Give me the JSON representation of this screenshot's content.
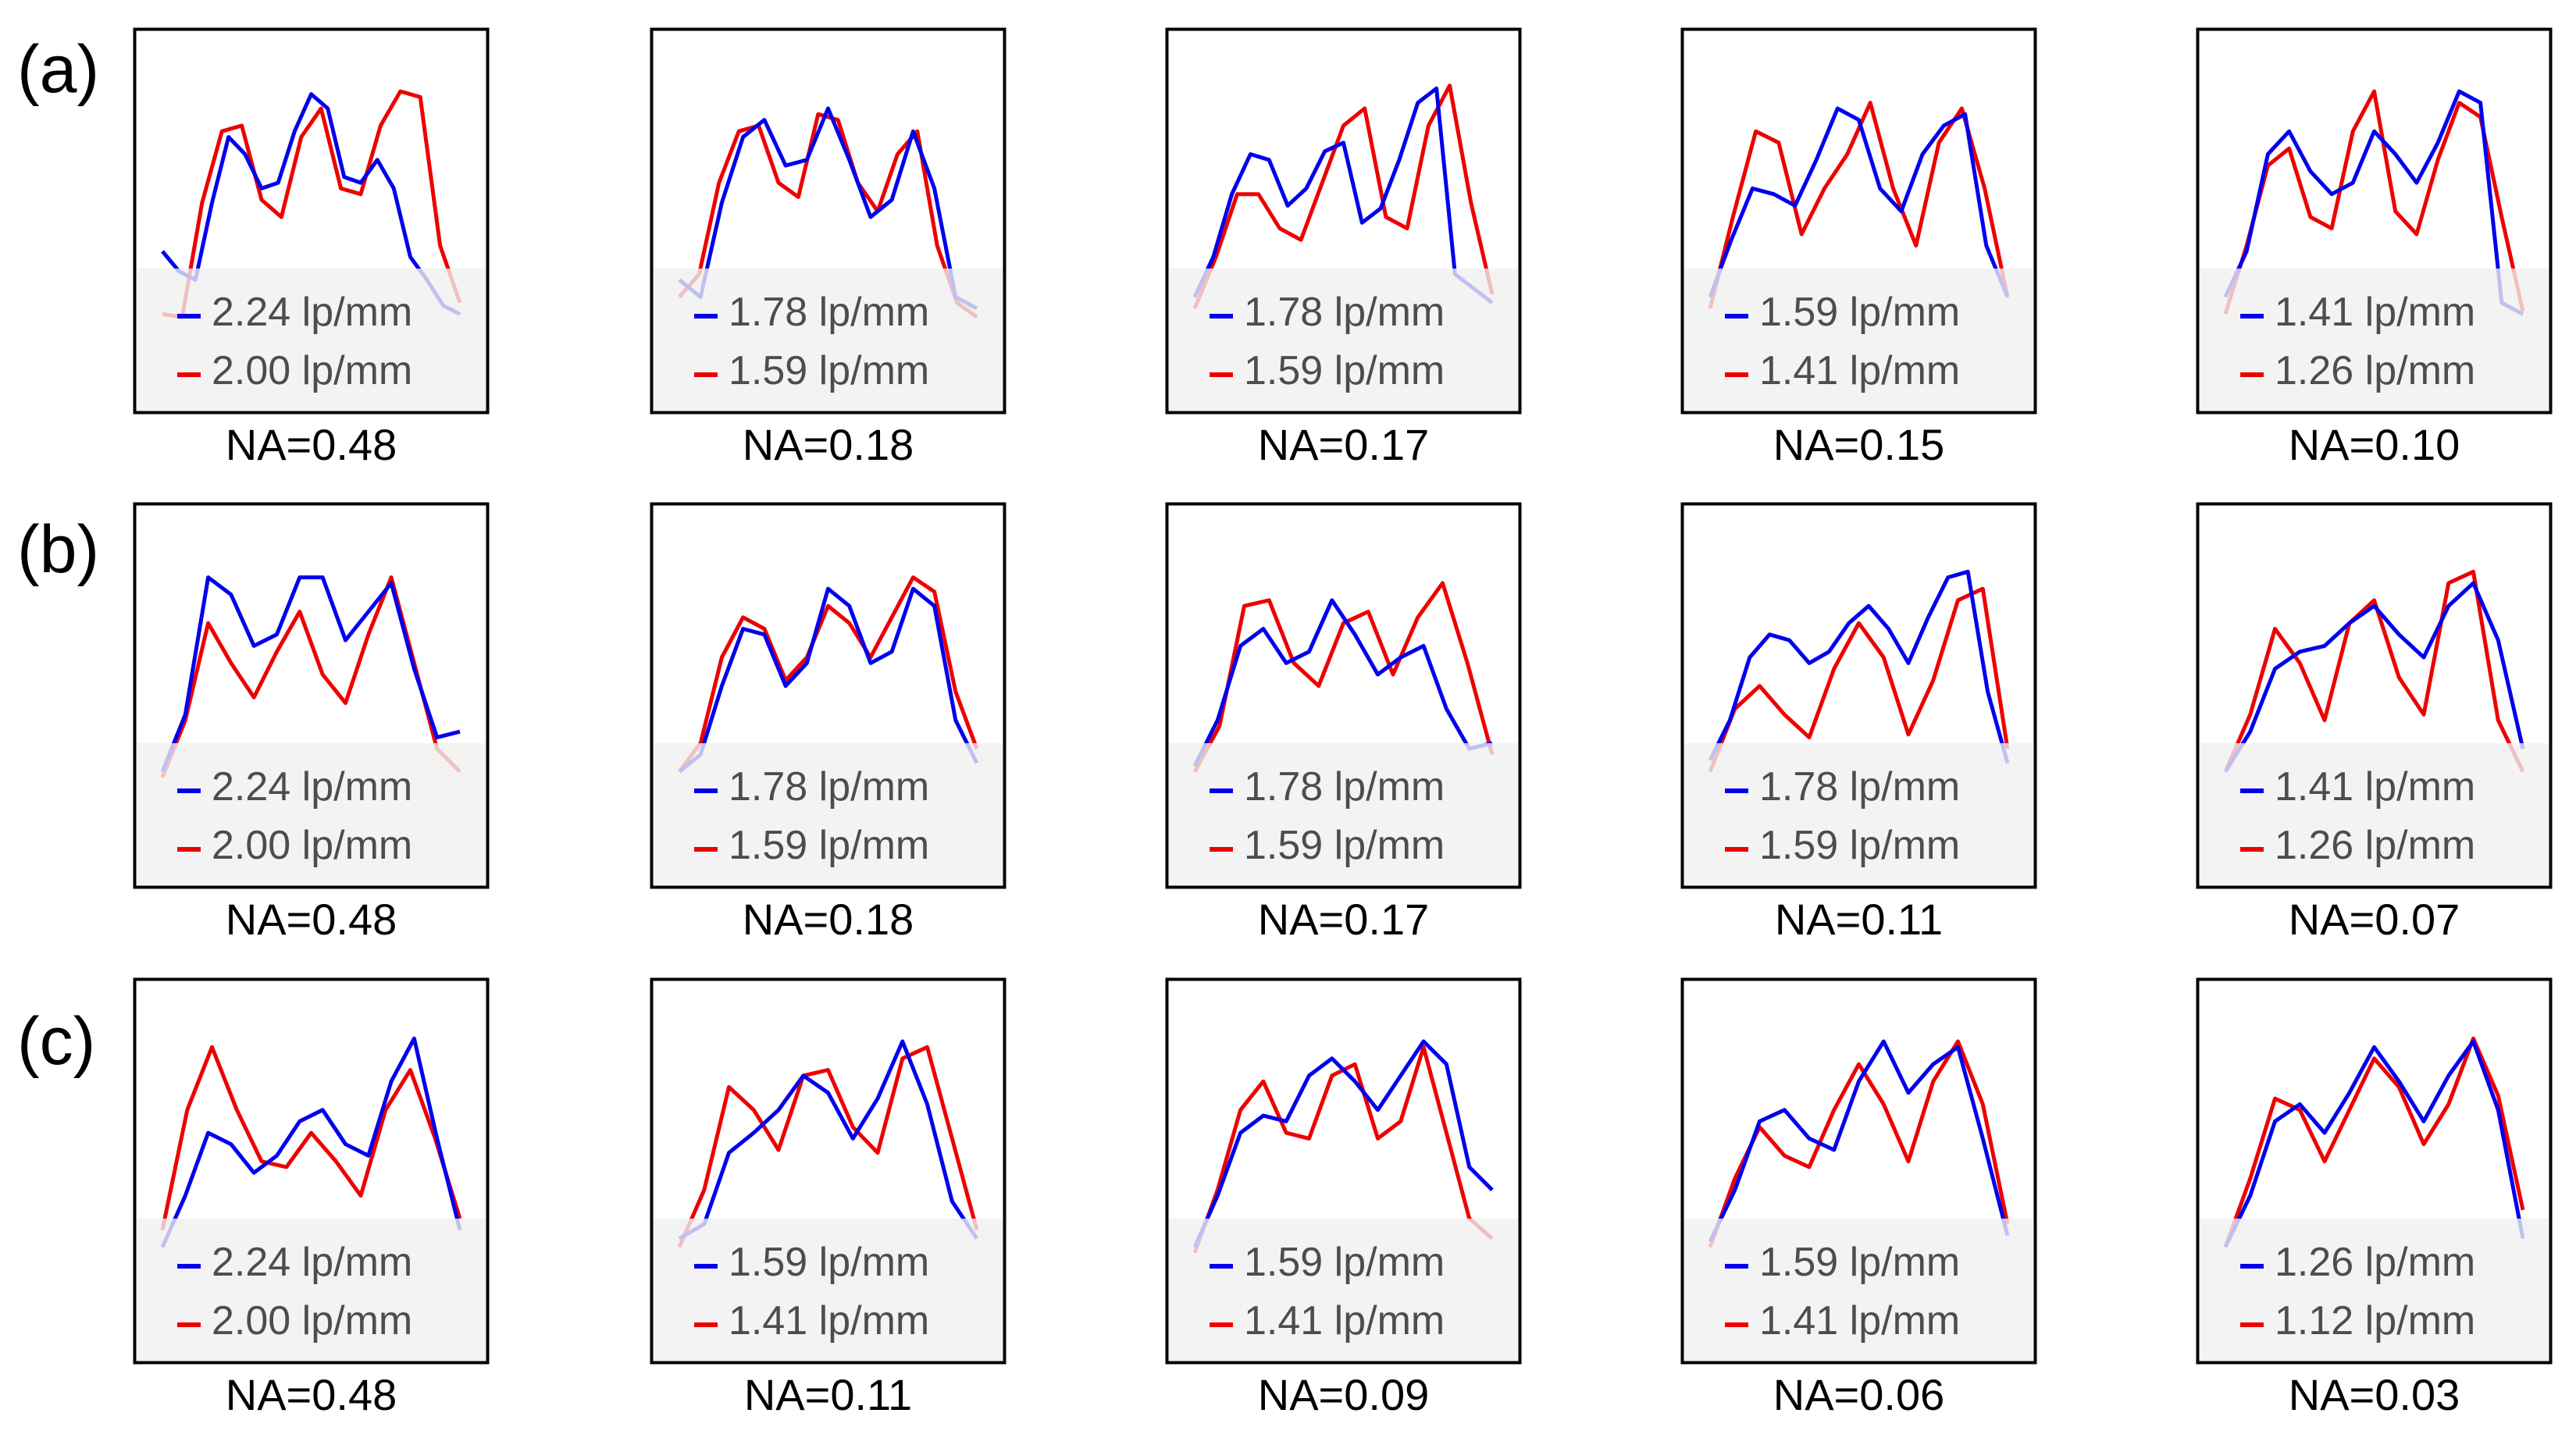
{
  "figure": {
    "row_labels": [
      "(a)",
      "(b)",
      "(c)"
    ]
  },
  "colors": {
    "series_1": "#0000ee",
    "series_2": "#ee0000",
    "frame": "#000000",
    "legend_background": "#f0f0f0"
  },
  "chart_data": [
    {
      "type": "line",
      "row": "(a)",
      "na_label": "NA=0.48",
      "series": [
        {
          "name": "2.24 lp/mm",
          "color": "#0000ee",
          "values": [
            0.38,
            0.31,
            0.28,
            0.55,
            0.78,
            0.72,
            0.6,
            0.62,
            0.8,
            0.93,
            0.88,
            0.64,
            0.62,
            0.7,
            0.6,
            0.36,
            0.28,
            0.19,
            0.16
          ]
        },
        {
          "name": "2.00 lp/mm",
          "color": "#ee0000",
          "values": [
            0.16,
            0.15,
            0.55,
            0.8,
            0.82,
            0.56,
            0.5,
            0.78,
            0.88,
            0.6,
            0.58,
            0.82,
            0.94,
            0.92,
            0.4,
            0.2
          ]
        }
      ]
    },
    {
      "type": "line",
      "row": "(a)",
      "na_label": "NA=0.18",
      "series": [
        {
          "name": "1.78 lp/mm",
          "color": "#0000ee",
          "values": [
            0.28,
            0.22,
            0.55,
            0.78,
            0.84,
            0.68,
            0.7,
            0.88,
            0.7,
            0.5,
            0.56,
            0.8,
            0.6,
            0.22,
            0.18
          ]
        },
        {
          "name": "1.59 lp/mm",
          "color": "#ee0000",
          "values": [
            0.22,
            0.3,
            0.62,
            0.8,
            0.82,
            0.62,
            0.57,
            0.86,
            0.84,
            0.62,
            0.52,
            0.72,
            0.8,
            0.4,
            0.2,
            0.15
          ]
        }
      ]
    },
    {
      "type": "line",
      "row": "(a)",
      "na_label": "NA=0.17",
      "series": [
        {
          "name": "1.78 lp/mm",
          "color": "#0000ee",
          "values": [
            0.22,
            0.36,
            0.58,
            0.72,
            0.7,
            0.54,
            0.6,
            0.73,
            0.76,
            0.48,
            0.53,
            0.7,
            0.9,
            0.95,
            0.3,
            0.25,
            0.2
          ]
        },
        {
          "name": "1.59 lp/mm",
          "color": "#ee0000",
          "values": [
            0.18,
            0.36,
            0.58,
            0.58,
            0.46,
            0.42,
            0.62,
            0.82,
            0.88,
            0.5,
            0.46,
            0.82,
            0.96,
            0.55,
            0.23
          ]
        }
      ]
    },
    {
      "type": "line",
      "row": "(a)",
      "na_label": "NA=0.15",
      "series": [
        {
          "name": "1.59 lp/mm",
          "color": "#0000ee",
          "values": [
            0.22,
            0.42,
            0.6,
            0.58,
            0.54,
            0.7,
            0.88,
            0.84,
            0.6,
            0.52,
            0.72,
            0.82,
            0.86,
            0.4,
            0.22
          ]
        },
        {
          "name": "1.41 lp/mm",
          "color": "#ee0000",
          "values": [
            0.18,
            0.5,
            0.8,
            0.76,
            0.44,
            0.6,
            0.72,
            0.9,
            0.6,
            0.4,
            0.76,
            0.88,
            0.6,
            0.22
          ]
        }
      ]
    },
    {
      "type": "line",
      "row": "(a)",
      "na_label": "NA=0.10",
      "series": [
        {
          "name": "1.41 lp/mm",
          "color": "#0000ee",
          "values": [
            0.22,
            0.38,
            0.72,
            0.8,
            0.66,
            0.58,
            0.62,
            0.8,
            0.72,
            0.62,
            0.76,
            0.94,
            0.9,
            0.2,
            0.16
          ]
        },
        {
          "name": "1.26 lp/mm",
          "color": "#ee0000",
          "values": [
            0.16,
            0.4,
            0.68,
            0.74,
            0.5,
            0.46,
            0.8,
            0.94,
            0.52,
            0.44,
            0.7,
            0.9,
            0.85,
            0.5,
            0.17
          ]
        }
      ]
    },
    {
      "type": "line",
      "row": "(b)",
      "na_label": "NA=0.48",
      "series": [
        {
          "name": "2.24 lp/mm",
          "color": "#0000ee",
          "values": [
            0.22,
            0.42,
            0.9,
            0.84,
            0.66,
            0.7,
            0.9,
            0.9,
            0.68,
            0.78,
            0.88,
            0.58,
            0.34,
            0.36
          ]
        },
        {
          "name": "2.00 lp/mm",
          "color": "#ee0000",
          "values": [
            0.2,
            0.4,
            0.74,
            0.6,
            0.48,
            0.64,
            0.78,
            0.56,
            0.46,
            0.7,
            0.9,
            0.6,
            0.3,
            0.22
          ]
        }
      ]
    },
    {
      "type": "line",
      "row": "(b)",
      "na_label": "NA=0.18",
      "series": [
        {
          "name": "1.78 lp/mm",
          "color": "#0000ee",
          "values": [
            0.22,
            0.28,
            0.52,
            0.72,
            0.7,
            0.52,
            0.6,
            0.86,
            0.8,
            0.6,
            0.64,
            0.86,
            0.8,
            0.4,
            0.25
          ]
        },
        {
          "name": "1.59 lp/mm",
          "color": "#ee0000",
          "values": [
            0.22,
            0.32,
            0.62,
            0.76,
            0.72,
            0.54,
            0.62,
            0.8,
            0.74,
            0.62,
            0.76,
            0.9,
            0.85,
            0.5,
            0.3
          ]
        }
      ]
    },
    {
      "type": "line",
      "row": "(b)",
      "na_label": "NA=0.17",
      "series": [
        {
          "name": "1.78 lp/mm",
          "color": "#0000ee",
          "values": [
            0.24,
            0.4,
            0.66,
            0.72,
            0.6,
            0.64,
            0.82,
            0.7,
            0.56,
            0.62,
            0.66,
            0.44,
            0.3,
            0.32
          ]
        },
        {
          "name": "1.59 lp/mm",
          "color": "#ee0000",
          "values": [
            0.22,
            0.38,
            0.8,
            0.82,
            0.6,
            0.52,
            0.74,
            0.78,
            0.56,
            0.76,
            0.88,
            0.6,
            0.28
          ]
        }
      ]
    },
    {
      "type": "line",
      "row": "(b)",
      "na_label": "NA=0.11",
      "series": [
        {
          "name": "1.78 lp/mm",
          "color": "#0000ee",
          "values": [
            0.26,
            0.4,
            0.62,
            0.7,
            0.68,
            0.6,
            0.64,
            0.74,
            0.8,
            0.72,
            0.6,
            0.76,
            0.9,
            0.92,
            0.5,
            0.25
          ]
        },
        {
          "name": "1.59 lp/mm",
          "color": "#ee0000",
          "values": [
            0.22,
            0.44,
            0.52,
            0.42,
            0.34,
            0.58,
            0.74,
            0.62,
            0.35,
            0.54,
            0.82,
            0.86,
            0.3
          ]
        }
      ]
    },
    {
      "type": "line",
      "row": "(b)",
      "na_label": "NA=0.07",
      "series": [
        {
          "name": "1.41 lp/mm",
          "color": "#0000ee",
          "values": [
            0.22,
            0.36,
            0.58,
            0.64,
            0.66,
            0.74,
            0.8,
            0.7,
            0.62,
            0.8,
            0.88,
            0.68,
            0.3
          ]
        },
        {
          "name": "1.26 lp/mm",
          "color": "#ee0000",
          "values": [
            0.22,
            0.42,
            0.72,
            0.6,
            0.4,
            0.74,
            0.82,
            0.55,
            0.42,
            0.88,
            0.92,
            0.4,
            0.22
          ]
        }
      ]
    },
    {
      "type": "line",
      "row": "(c)",
      "na_label": "NA=0.48",
      "series": [
        {
          "name": "2.24 lp/mm",
          "color": "#0000ee",
          "values": [
            0.22,
            0.4,
            0.62,
            0.58,
            0.48,
            0.54,
            0.66,
            0.7,
            0.58,
            0.54,
            0.8,
            0.95,
            0.6,
            0.28
          ]
        },
        {
          "name": "2.00 lp/mm",
          "color": "#ee0000",
          "values": [
            0.28,
            0.7,
            0.92,
            0.7,
            0.52,
            0.5,
            0.62,
            0.52,
            0.4,
            0.7,
            0.84,
            0.6,
            0.32
          ]
        }
      ]
    },
    {
      "type": "line",
      "row": "(c)",
      "na_label": "NA=0.11",
      "series": [
        {
          "name": "1.59 lp/mm",
          "color": "#0000ee",
          "values": [
            0.25,
            0.3,
            0.55,
            0.62,
            0.7,
            0.82,
            0.76,
            0.6,
            0.74,
            0.94,
            0.72,
            0.38,
            0.25
          ]
        },
        {
          "name": "1.41 lp/mm",
          "color": "#ee0000",
          "values": [
            0.22,
            0.42,
            0.78,
            0.7,
            0.56,
            0.82,
            0.84,
            0.64,
            0.55,
            0.88,
            0.92,
            0.6,
            0.28
          ]
        }
      ]
    },
    {
      "type": "line",
      "row": "(c)",
      "na_label": "NA=0.09",
      "series": [
        {
          "name": "1.59 lp/mm",
          "color": "#0000ee",
          "values": [
            0.22,
            0.4,
            0.62,
            0.68,
            0.66,
            0.82,
            0.88,
            0.8,
            0.7,
            0.82,
            0.94,
            0.86,
            0.5,
            0.42
          ]
        },
        {
          "name": "1.41 lp/mm",
          "color": "#ee0000",
          "values": [
            0.2,
            0.42,
            0.7,
            0.8,
            0.62,
            0.6,
            0.82,
            0.86,
            0.6,
            0.66,
            0.92,
            0.62,
            0.32,
            0.25
          ]
        }
      ]
    },
    {
      "type": "line",
      "row": "(c)",
      "na_label": "NA=0.06",
      "series": [
        {
          "name": "1.59 lp/mm",
          "color": "#0000ee",
          "values": [
            0.24,
            0.42,
            0.66,
            0.7,
            0.6,
            0.56,
            0.8,
            0.94,
            0.76,
            0.86,
            0.92,
            0.6,
            0.26
          ]
        },
        {
          "name": "1.41 lp/mm",
          "color": "#ee0000",
          "values": [
            0.22,
            0.46,
            0.64,
            0.54,
            0.5,
            0.7,
            0.86,
            0.72,
            0.52,
            0.8,
            0.94,
            0.72,
            0.3
          ]
        }
      ]
    },
    {
      "type": "line",
      "row": "(c)",
      "na_label": "NA=0.03",
      "series": [
        {
          "name": "1.26 lp/mm",
          "color": "#0000ee",
          "values": [
            0.22,
            0.4,
            0.66,
            0.72,
            0.62,
            0.76,
            0.92,
            0.8,
            0.66,
            0.82,
            0.94,
            0.7,
            0.25
          ]
        },
        {
          "name": "1.12 lp/mm",
          "color": "#ee0000",
          "values": [
            0.22,
            0.46,
            0.74,
            0.7,
            0.52,
            0.7,
            0.88,
            0.78,
            0.58,
            0.72,
            0.95,
            0.75,
            0.35
          ]
        }
      ]
    }
  ]
}
